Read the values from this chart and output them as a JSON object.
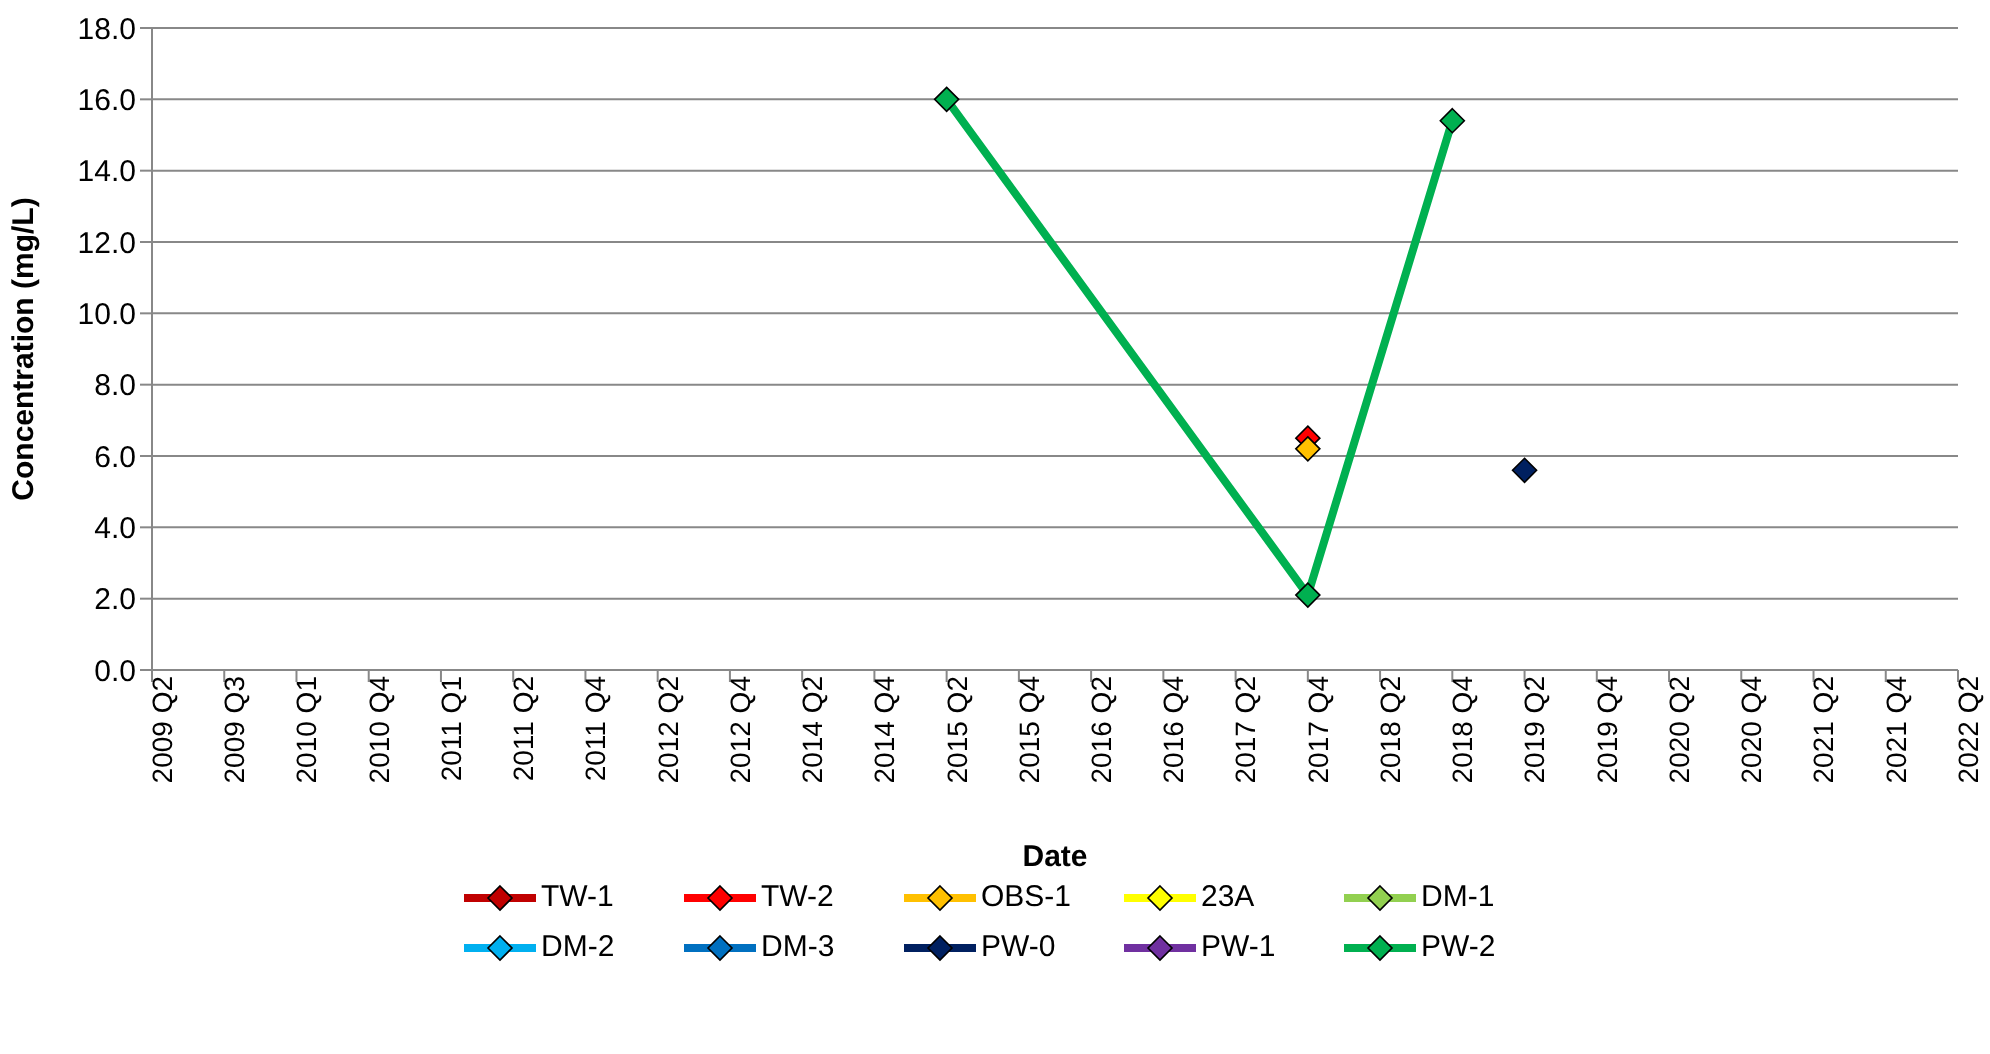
{
  "chart_data": {
    "type": "line",
    "xlabel": "Date",
    "ylabel": "Concentration (mg/L)",
    "categories": [
      "2009 Q2",
      "2009 Q3",
      "2010 Q1",
      "2010 Q4",
      "2011 Q1",
      "2011 Q2",
      "2011 Q4",
      "2012 Q2",
      "2012 Q4",
      "2014 Q2",
      "2014 Q4",
      "2015 Q2",
      "2015 Q4",
      "2016 Q2",
      "2016 Q4",
      "2017 Q2",
      "2017 Q4",
      "2018 Q2",
      "2018 Q4",
      "2019 Q2",
      "2019 Q4",
      "2020 Q2",
      "2020 Q4",
      "2021 Q2",
      "2021 Q4",
      "2022 Q2"
    ],
    "series": [
      {
        "name": "TW-1",
        "color": "#c00000",
        "values": [
          null,
          null,
          null,
          null,
          null,
          null,
          null,
          null,
          null,
          null,
          null,
          null,
          null,
          null,
          null,
          null,
          null,
          null,
          null,
          null,
          null,
          null,
          null,
          null,
          null,
          null
        ]
      },
      {
        "name": "TW-2",
        "color": "#ff0000",
        "values": [
          null,
          null,
          null,
          null,
          null,
          null,
          null,
          null,
          null,
          null,
          null,
          null,
          null,
          null,
          null,
          null,
          6.5,
          null,
          null,
          null,
          null,
          null,
          null,
          null,
          null,
          null
        ]
      },
      {
        "name": "OBS-1",
        "color": "#ffc000",
        "values": [
          null,
          null,
          null,
          null,
          null,
          null,
          null,
          null,
          null,
          null,
          null,
          null,
          null,
          null,
          null,
          null,
          6.2,
          null,
          null,
          null,
          null,
          null,
          null,
          null,
          null,
          null
        ]
      },
      {
        "name": "23A",
        "color": "#ffff00",
        "values": [
          null,
          null,
          null,
          null,
          null,
          null,
          null,
          null,
          null,
          null,
          null,
          null,
          null,
          null,
          null,
          null,
          null,
          null,
          null,
          null,
          null,
          null,
          null,
          null,
          null,
          null
        ]
      },
      {
        "name": "DM-1",
        "color": "#92d050",
        "values": [
          null,
          null,
          null,
          null,
          null,
          null,
          null,
          null,
          null,
          null,
          null,
          null,
          null,
          null,
          null,
          null,
          null,
          null,
          null,
          null,
          null,
          null,
          null,
          null,
          null,
          null
        ]
      },
      {
        "name": "DM-2",
        "color": "#00b0f0",
        "values": [
          null,
          null,
          null,
          null,
          null,
          null,
          null,
          null,
          null,
          null,
          null,
          null,
          null,
          null,
          null,
          null,
          null,
          null,
          null,
          null,
          null,
          null,
          null,
          null,
          null,
          null
        ]
      },
      {
        "name": "DM-3",
        "color": "#0070c0",
        "values": [
          null,
          null,
          null,
          null,
          null,
          null,
          null,
          null,
          null,
          null,
          null,
          null,
          null,
          null,
          null,
          null,
          null,
          null,
          null,
          null,
          null,
          null,
          null,
          null,
          null,
          null
        ]
      },
      {
        "name": "PW-0",
        "color": "#002060",
        "values": [
          null,
          null,
          null,
          null,
          null,
          null,
          null,
          null,
          null,
          null,
          null,
          null,
          null,
          null,
          null,
          null,
          null,
          null,
          null,
          5.6,
          null,
          null,
          null,
          null,
          null,
          null
        ]
      },
      {
        "name": "PW-1",
        "color": "#7030a0",
        "values": [
          null,
          null,
          null,
          null,
          null,
          null,
          null,
          null,
          null,
          null,
          null,
          null,
          null,
          null,
          null,
          null,
          null,
          null,
          null,
          null,
          null,
          null,
          null,
          null,
          null,
          null
        ]
      },
      {
        "name": "PW-2",
        "color": "#00b050",
        "values": [
          null,
          null,
          null,
          null,
          null,
          null,
          null,
          null,
          null,
          null,
          null,
          16.0,
          null,
          null,
          null,
          null,
          2.1,
          null,
          15.4,
          null,
          null,
          null,
          null,
          null,
          null,
          null
        ]
      }
    ],
    "ylim": [
      0,
      18
    ],
    "yticks": [
      {
        "value": 0,
        "label": "0.0"
      },
      {
        "value": 2,
        "label": "2.0"
      },
      {
        "value": 4,
        "label": "4.0"
      },
      {
        "value": 6,
        "label": "6.0"
      },
      {
        "value": 8,
        "label": "8.0"
      },
      {
        "value": 10,
        "label": "10.0"
      },
      {
        "value": 12,
        "label": "12.0"
      },
      {
        "value": 14,
        "label": "14.0"
      },
      {
        "value": 16,
        "label": "16.0"
      },
      {
        "value": 18,
        "label": "18.0"
      }
    ],
    "grid": "y",
    "legend": "bottom",
    "marker": "diamond",
    "line_style": "solid"
  }
}
